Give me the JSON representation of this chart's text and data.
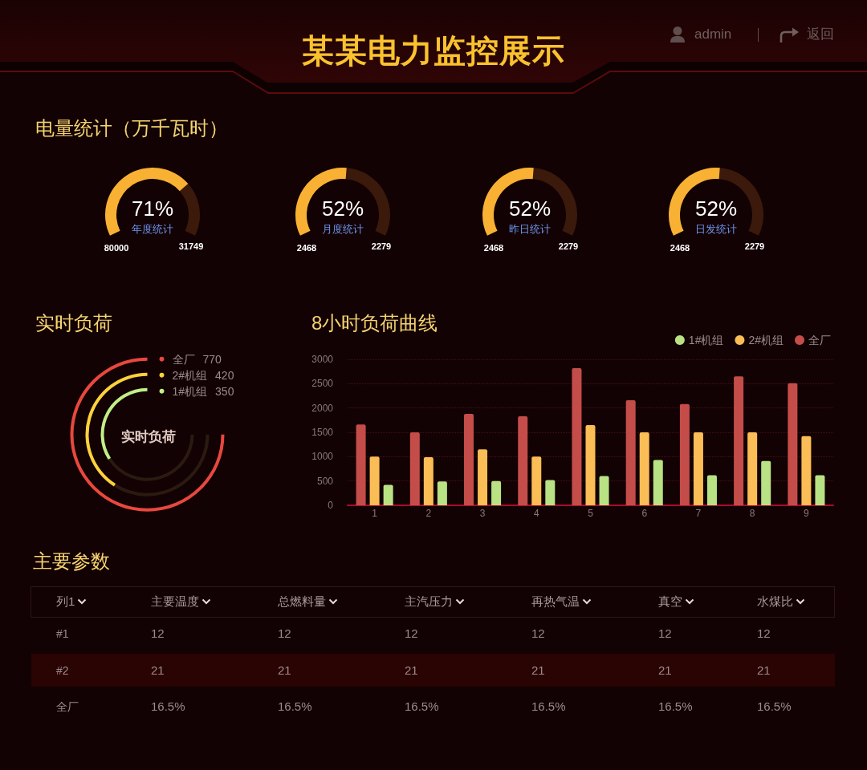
{
  "chart_data": [
    {
      "type": "other",
      "title": "某某电力监控展示",
      "annotations": [
        "admin",
        "返回"
      ]
    },
    {
      "type": "other",
      "title": "电量统计（万千瓦时）"
    },
    {
      "type": "donut",
      "title": "年度统计",
      "categories": [
        null,
        null
      ],
      "values": [
        71,
        29
      ],
      "colors": [
        "#f8b133",
        "#3b1a0b"
      ],
      "value_labels": [
        "71%",
        null
      ],
      "annotations": [
        "80000",
        "31749"
      ]
    },
    {
      "type": "donut",
      "title": "月度统计",
      "categories": [
        null,
        null
      ],
      "values": [
        52,
        48
      ],
      "colors": [
        "#f8b133",
        "#3b1a0b"
      ],
      "value_labels": [
        "52%",
        null
      ],
      "annotations": [
        "2468",
        "2279"
      ]
    },
    {
      "type": "donut",
      "title": "昨日统计",
      "categories": [
        null,
        null
      ],
      "values": [
        52,
        48
      ],
      "colors": [
        "#f8b133",
        "#3b1a0b"
      ],
      "value_labels": [
        "52%",
        null
      ],
      "annotations": [
        "2468",
        "2279"
      ]
    },
    {
      "type": "donut",
      "title": "日发统计",
      "categories": [
        null,
        null
      ],
      "values": [
        52,
        48
      ],
      "colors": [
        "#f8b133",
        "#3b1a0b"
      ],
      "value_labels": [
        "52%",
        null
      ],
      "annotations": [
        "2468",
        "2279"
      ]
    },
    {
      "type": "other",
      "title": "实时负荷",
      "categories": [
        "全厂",
        "2#机组",
        "1#机组"
      ],
      "values": [
        770,
        420,
        350
      ],
      "colors": [
        "#e8483e",
        "#fdd23a",
        "#c2ee88"
      ],
      "data_labels": true,
      "annotations": [
        "实时负荷"
      ]
    },
    {
      "type": "bar",
      "title": "8小时负荷曲线",
      "categories": [
        "1",
        "2",
        "3",
        "4",
        "5",
        "6",
        "7",
        "8",
        "9"
      ],
      "series": [
        {
          "name": "全厂",
          "color": "#c44d4a",
          "values": [
            1660,
            1500,
            1880,
            1830,
            2820,
            2160,
            2080,
            2650,
            2510
          ]
        },
        {
          "name": "2#机组",
          "color": "#fbbd55",
          "values": [
            1000,
            990,
            1150,
            1000,
            1650,
            1500,
            1500,
            1500,
            1420
          ]
        },
        {
          "name": "1#机组",
          "color": "#b8e283",
          "values": [
            420,
            490,
            500,
            520,
            600,
            930,
            620,
            910,
            620
          ]
        }
      ],
      "ylim": [
        0,
        3000
      ],
      "yticks": [
        0,
        500,
        1000,
        1500,
        2000,
        2500,
        3000
      ],
      "grid": "y",
      "legend": "top right"
    },
    {
      "type": "other",
      "title": "主要参数",
      "ylabel": "列1",
      "categories": [
        "主要温度",
        "总燃料量",
        "主汽压力",
        "再热气温",
        "真空",
        "水煤比"
      ],
      "y_categories": [
        "#1",
        "#2",
        "全厂"
      ],
      "cell_labels": [
        [
          "12",
          "12",
          "12",
          "12",
          "12",
          "12"
        ],
        [
          "21",
          "21",
          "21",
          "21",
          "21",
          "21"
        ],
        [
          "16.5%",
          "16.5%",
          "16.5%",
          "16.5%",
          "16.5%",
          "16.5%"
        ]
      ]
    }
  ]
}
